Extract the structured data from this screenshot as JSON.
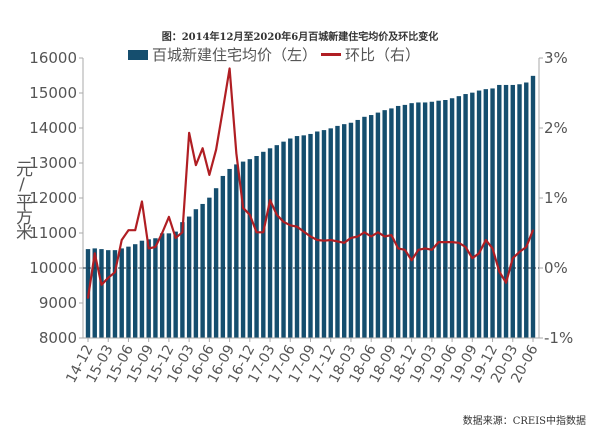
{
  "chart_data": {
    "type": "bar+line",
    "title": "图：2014年12月至2020年6月百城新建住宅均价及环比变化",
    "ylabel": "元/平方米",
    "source": "数据来源：CREIS中指数据",
    "legend_placement": "top",
    "categories": [
      "14-12",
      "15-01",
      "15-02",
      "15-03",
      "15-04",
      "15-05",
      "15-06",
      "15-07",
      "15-08",
      "15-09",
      "15-10",
      "15-11",
      "15-12",
      "16-01",
      "16-02",
      "16-03",
      "16-04",
      "16-05",
      "16-06",
      "16-07",
      "16-08",
      "16-09",
      "16-10",
      "16-11",
      "16-12",
      "17-01",
      "17-02",
      "17-03",
      "17-04",
      "17-05",
      "17-06",
      "17-07",
      "17-08",
      "17-09",
      "17-10",
      "17-11",
      "17-12",
      "18-01",
      "18-02",
      "18-03",
      "18-04",
      "18-05",
      "18-06",
      "18-07",
      "18-08",
      "18-09",
      "18-10",
      "18-11",
      "18-12",
      "19-01",
      "19-02",
      "19-03",
      "19-04",
      "19-05",
      "19-06",
      "19-07",
      "19-08",
      "19-09",
      "19-10",
      "19-11",
      "19-12",
      "20-01",
      "20-02",
      "20-03",
      "20-04",
      "20-05",
      "20-06"
    ],
    "x_tick_labels": [
      "14-12",
      "15-03",
      "15-06",
      "15-09",
      "15-12",
      "16-03",
      "16-06",
      "16-09",
      "16-12",
      "17-03",
      "17-06",
      "17-09",
      "17-12",
      "18-03",
      "18-06",
      "18-09",
      "18-12",
      "19-03",
      "19-06",
      "19-09",
      "19-12",
      "20-03",
      "20-06"
    ],
    "y_left": {
      "range": [
        8000,
        16000
      ],
      "ticks": [
        "8000",
        "9000",
        "10000",
        "11000",
        "12000",
        "13000",
        "14000",
        "15000",
        "16000"
      ]
    },
    "y_right": {
      "range": [
        -1,
        3
      ],
      "unit": "%",
      "ticks": [
        "-1%",
        "0%",
        "1%",
        "2%",
        "3%"
      ]
    },
    "grid": false,
    "series": [
      {
        "name": "百城新建住宅均价（左）",
        "type": "bar",
        "axis": "left",
        "color": "#154e6e",
        "values": [
          10540,
          10560,
          10540,
          10510,
          10510,
          10560,
          10610,
          10680,
          10780,
          10820,
          10850,
          10990,
          10990,
          11040,
          11310,
          11470,
          11680,
          11830,
          12010,
          12280,
          12630,
          12830,
          12960,
          13040,
          13110,
          13200,
          13320,
          13420,
          13510,
          13610,
          13700,
          13770,
          13790,
          13830,
          13900,
          13940,
          13990,
          14060,
          14110,
          14150,
          14230,
          14320,
          14370,
          14440,
          14510,
          14560,
          14630,
          14660,
          14710,
          14730,
          14730,
          14750,
          14780,
          14800,
          14850,
          14910,
          14970,
          15010,
          15070,
          15110,
          15130,
          15230,
          15230,
          15230,
          15250,
          15300,
          15490
        ]
      },
      {
        "name": "环比（右）",
        "type": "line",
        "axis": "right",
        "color": "#b01e23",
        "values": [
          -0.43,
          0.21,
          -0.24,
          -0.14,
          -0.06,
          0.4,
          0.54,
          0.54,
          0.95,
          0.28,
          0.3,
          0.5,
          0.73,
          0.43,
          0.51,
          1.93,
          1.47,
          1.71,
          1.33,
          1.69,
          2.26,
          2.85,
          1.64,
          0.86,
          0.76,
          0.51,
          0.51,
          0.97,
          0.76,
          0.66,
          0.61,
          0.59,
          0.52,
          0.45,
          0.4,
          0.39,
          0.4,
          0.38,
          0.36,
          0.43,
          0.45,
          0.51,
          0.45,
          0.51,
          0.45,
          0.47,
          0.28,
          0.26,
          0.11,
          0.26,
          0.28,
          0.26,
          0.37,
          0.37,
          0.37,
          0.36,
          0.3,
          0.14,
          0.21,
          0.4,
          0.28,
          -0.05,
          -0.21,
          0.14,
          0.23,
          0.3,
          0.54
        ]
      }
    ]
  }
}
